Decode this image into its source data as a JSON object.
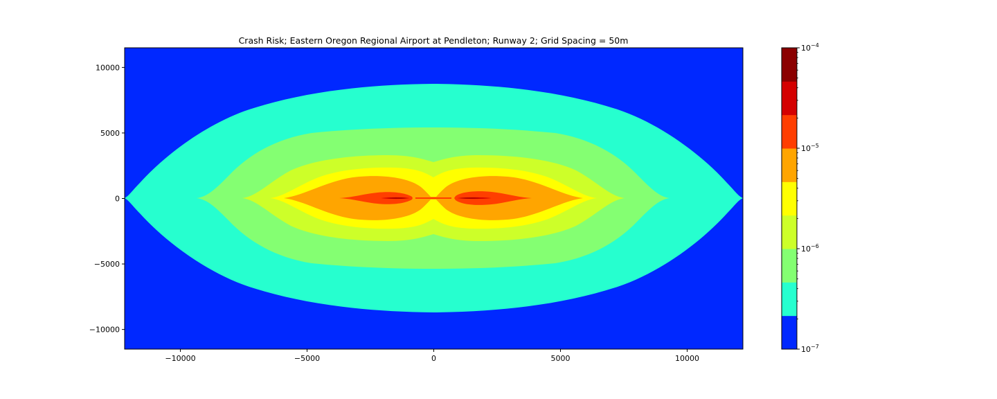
{
  "chart_data": {
    "type": "heatmap",
    "subtype": "filled-contour",
    "title": "Crash Risk; Eastern Oregon Regional Airport at Pendleton; Runway 2; Grid Spacing = 50m",
    "xlabel": "",
    "ylabel": "",
    "xlim": [
      -12200,
      12200
    ],
    "ylim": [
      -11500,
      11500
    ],
    "x_ticks": [
      -10000,
      -5000,
      0,
      5000,
      10000
    ],
    "x_tick_labels": [
      "−10000",
      "−5000",
      "0",
      "5000",
      "10000"
    ],
    "y_ticks": [
      10000,
      5000,
      0,
      -5000,
      -10000
    ],
    "y_tick_labels": [
      "10000",
      "5000",
      "0",
      "−5000",
      "−10000"
    ],
    "grid": false,
    "colorbar": {
      "scale": "log",
      "range": [
        1e-07,
        0.0001
      ],
      "levels": [
        1e-07,
        1e-06,
        2e-06,
        3e-06,
        5e-06,
        1e-05,
        2e-05,
        3e-05,
        5e-05,
        0.0001
      ],
      "colors": [
        "#0028ff",
        "#26ffcf",
        "#84ff72",
        "#cdff29",
        "#ffff00",
        "#ffa500",
        "#ff3e00",
        "#d40000",
        "#8b0000"
      ],
      "major_ticks": [
        {
          "exp": -7,
          "label": "10",
          "sup": "−7"
        },
        {
          "exp": -6,
          "label": "10",
          "sup": "−6"
        },
        {
          "exp": -5,
          "label": "10",
          "sup": "−5"
        },
        {
          "exp": -4,
          "label": "10",
          "sup": "−4"
        }
      ]
    },
    "regions": [
      {
        "level": "1e-6 to 2e-6",
        "x_extent": [
          -12200,
          12200
        ],
        "y_extent": [
          -8800,
          8800
        ]
      },
      {
        "level": "2e-6 to 3e-6",
        "x_extent": [
          -9200,
          9200
        ],
        "y_extent": [
          -5500,
          5500
        ]
      },
      {
        "level": "3e-6 to 5e-6",
        "x_extent": [
          -7500,
          7500
        ],
        "y_extent": [
          -3400,
          3400
        ]
      },
      {
        "level": "5e-6 to 1e-5",
        "x_extent": [
          -6300,
          6300
        ],
        "y_extent": [
          -2300,
          2300
        ]
      },
      {
        "level": "1e-5 to 2e-5",
        "x_extent": [
          -5900,
          5900
        ],
        "y_extent": [
          -1700,
          1700
        ]
      },
      {
        "level": "2e-5 to 3e-5",
        "x_extent": [
          -3700,
          3700
        ],
        "y_extent": [
          -450,
          450
        ]
      },
      {
        "level": "5e-5 to 1e-4",
        "x_extent": [
          -2100,
          2100
        ],
        "y_extent": [
          -50,
          50
        ]
      }
    ]
  }
}
